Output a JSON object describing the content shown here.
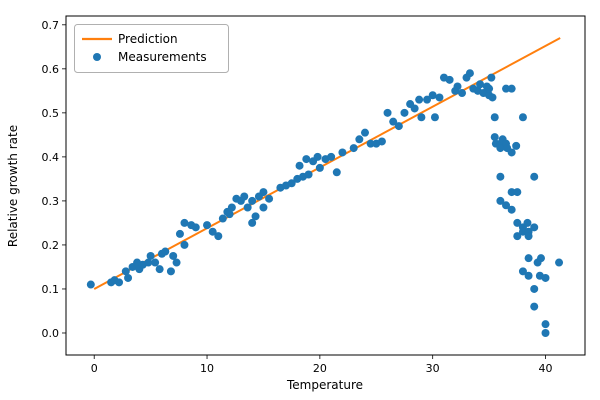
{
  "figure": {
    "background": "#ffffff",
    "spine_color": "#000000",
    "accent_line_color": "#ff7f0e",
    "accent_marker_color": "#1f77b4"
  },
  "chart_data": {
    "type": "scatter",
    "title": "",
    "xlabel": "Temperature",
    "ylabel": "Relative growth rate",
    "xlim": [
      -2.5,
      43.5
    ],
    "ylim": [
      -0.05,
      0.72
    ],
    "xticks": [
      0,
      10,
      20,
      30,
      40
    ],
    "yticks": [
      0.0,
      0.1,
      0.2,
      0.3,
      0.4,
      0.5,
      0.6,
      0.7
    ],
    "grid": false,
    "legend_position": "upper left",
    "series": [
      {
        "name": "Prediction",
        "type": "line",
        "color": "#ff7f0e",
        "x": [
          0,
          41.3
        ],
        "y": [
          0.1,
          0.67
        ]
      },
      {
        "name": "Measurements",
        "type": "scatter",
        "color": "#1f77b4",
        "x": [
          -0.3,
          1.5,
          1.8,
          2.2,
          2.8,
          3.0,
          3.4,
          3.8,
          4.0,
          4.3,
          4.8,
          5.0,
          5.4,
          5.8,
          6.0,
          6.3,
          6.8,
          7.0,
          7.3,
          7.6,
          8.0,
          8.0,
          8.6,
          9.0,
          10.0,
          10.5,
          11.0,
          11.4,
          11.8,
          12.0,
          12.2,
          12.6,
          13.0,
          13.3,
          13.6,
          14.0,
          14.0,
          14.3,
          14.6,
          15.0,
          15.0,
          15.5,
          16.5,
          17.0,
          17.5,
          18.0,
          18.2,
          18.5,
          18.8,
          19.0,
          19.4,
          19.8,
          20.0,
          20.5,
          21.0,
          21.5,
          22.0,
          23.0,
          23.5,
          24.0,
          24.5,
          25.0,
          25.5,
          26.0,
          26.5,
          27.0,
          27.5,
          28.0,
          28.4,
          28.8,
          29.0,
          29.5,
          30.0,
          30.2,
          30.6,
          31.0,
          31.5,
          32.0,
          32.2,
          32.6,
          33.0,
          33.3,
          33.6,
          34.0,
          34.2,
          34.5,
          34.8,
          35.0,
          35.0,
          35.2,
          35.3,
          35.5,
          35.5,
          35.6,
          36.0,
          36.0,
          36.0,
          36.0,
          36.2,
          36.5,
          36.5,
          36.6,
          36.5,
          37.0,
          37.0,
          37.0,
          37.0,
          37.4,
          37.5,
          37.5,
          37.5,
          38.0,
          38.0,
          38.0,
          38.0,
          38.4,
          38.5,
          38.5,
          38.5,
          38.5,
          39.0,
          39.0,
          39.0,
          39.0,
          39.3,
          39.5,
          39.6,
          40.0,
          40.0,
          40.0,
          41.2
        ],
        "y": [
          0.11,
          0.115,
          0.12,
          0.115,
          0.14,
          0.125,
          0.15,
          0.16,
          0.145,
          0.155,
          0.16,
          0.175,
          0.16,
          0.145,
          0.18,
          0.185,
          0.14,
          0.175,
          0.16,
          0.225,
          0.2,
          0.25,
          0.245,
          0.24,
          0.245,
          0.23,
          0.22,
          0.26,
          0.275,
          0.27,
          0.285,
          0.305,
          0.3,
          0.31,
          0.285,
          0.3,
          0.25,
          0.265,
          0.31,
          0.32,
          0.285,
          0.305,
          0.33,
          0.335,
          0.34,
          0.35,
          0.38,
          0.355,
          0.395,
          0.36,
          0.39,
          0.4,
          0.375,
          0.395,
          0.4,
          0.365,
          0.41,
          0.42,
          0.44,
          0.455,
          0.43,
          0.43,
          0.435,
          0.5,
          0.48,
          0.47,
          0.5,
          0.52,
          0.51,
          0.53,
          0.49,
          0.53,
          0.54,
          0.49,
          0.535,
          0.58,
          0.575,
          0.55,
          0.56,
          0.545,
          0.58,
          0.59,
          0.555,
          0.55,
          0.565,
          0.545,
          0.56,
          0.54,
          0.555,
          0.58,
          0.535,
          0.49,
          0.445,
          0.43,
          0.43,
          0.42,
          0.355,
          0.3,
          0.44,
          0.555,
          0.43,
          0.42,
          0.29,
          0.555,
          0.41,
          0.32,
          0.28,
          0.425,
          0.32,
          0.25,
          0.22,
          0.49,
          0.24,
          0.23,
          0.14,
          0.25,
          0.23,
          0.22,
          0.17,
          0.13,
          0.355,
          0.24,
          0.1,
          0.06,
          0.16,
          0.13,
          0.17,
          0.125,
          0.02,
          0.0,
          0.16
        ]
      }
    ]
  }
}
